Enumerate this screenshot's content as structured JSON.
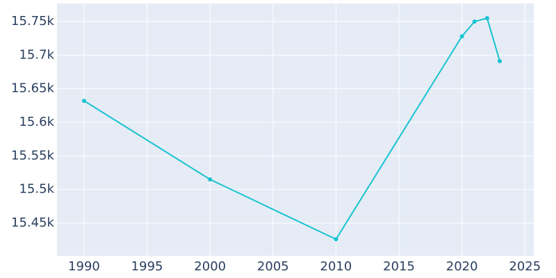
{
  "chart_data": {
    "type": "line",
    "x": [
      1990,
      2000,
      2010,
      2020,
      2021,
      2022,
      2023
    ],
    "series": [
      {
        "color": "#17c3d0",
        "values": [
          15632,
          15515,
          15426,
          15728,
          15750,
          15755,
          15691
        ]
      }
    ],
    "xlim": [
      1987.85,
      2025.7
    ],
    "xticks": [
      1990,
      1995,
      2000,
      2005,
      2010,
      2015,
      2020,
      2025
    ],
    "ylim": [
      15401.4,
      15776.9
    ],
    "yticks": [
      {
        "value": 15450,
        "label": "15.45k"
      },
      {
        "value": 15500,
        "label": "15.5k"
      },
      {
        "value": 15550,
        "label": "15.55k"
      },
      {
        "value": 15600,
        "label": "15.6k"
      },
      {
        "value": 15650,
        "label": "15.65k"
      },
      {
        "value": 15700,
        "label": "15.7k"
      },
      {
        "value": 15750,
        "label": "15.75k"
      }
    ],
    "grid": true
  }
}
